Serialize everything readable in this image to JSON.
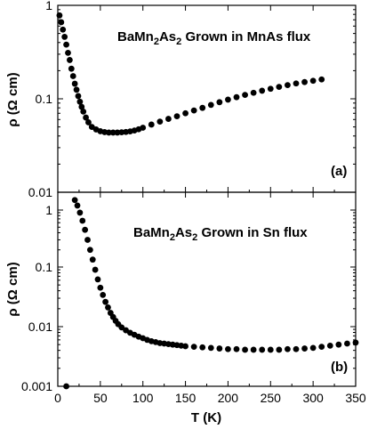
{
  "chart_data": [
    {
      "type": "scatter",
      "scale_y": "log",
      "title": "BaMn2As2 Grown in MnAs flux",
      "title_parts": {
        "base": "BaMn",
        "sub1": "2",
        "mid": "As",
        "sub2": "2",
        "rest": " Grown in MnAs flux"
      },
      "panel_label": "(a)",
      "ylabel": "ρ (Ω cm)",
      "xlabel": "",
      "xlim": [
        0,
        350
      ],
      "ylim": [
        0.01,
        1
      ],
      "yticks": [
        0.01,
        0.1,
        1
      ],
      "ytick_labels": [
        "0.01",
        "0.1",
        "1"
      ],
      "xticks": [
        0,
        50,
        100,
        150,
        200,
        250,
        300,
        350
      ],
      "xtick_labels": [],
      "series": [
        {
          "x": [
            2,
            4,
            6,
            8,
            10,
            12,
            14,
            16,
            18,
            20,
            22,
            24,
            26,
            28,
            30,
            33,
            36,
            40,
            45,
            50,
            55,
            60,
            65,
            70,
            75,
            80,
            85,
            90,
            95,
            100,
            110,
            120,
            130,
            140,
            150,
            160,
            170,
            180,
            190,
            200,
            210,
            220,
            230,
            240,
            250,
            260,
            270,
            280,
            290,
            300,
            310
          ],
          "y": [
            0.78,
            0.66,
            0.55,
            0.46,
            0.38,
            0.31,
            0.26,
            0.21,
            0.175,
            0.145,
            0.125,
            0.107,
            0.093,
            0.082,
            0.073,
            0.063,
            0.056,
            0.05,
            0.047,
            0.045,
            0.044,
            0.0435,
            0.0435,
            0.0435,
            0.0438,
            0.0442,
            0.0448,
            0.0458,
            0.0472,
            0.049,
            0.053,
            0.057,
            0.061,
            0.065,
            0.07,
            0.075,
            0.08,
            0.086,
            0.092,
            0.098,
            0.104,
            0.11,
            0.116,
            0.122,
            0.128,
            0.134,
            0.14,
            0.146,
            0.151,
            0.156,
            0.161
          ]
        }
      ]
    },
    {
      "type": "scatter",
      "scale_y": "log",
      "title": "BaMn2As2 Grown in Sn flux",
      "title_parts": {
        "base": "BaMn",
        "sub1": "2",
        "mid": "As",
        "sub2": "2",
        "rest": " Grown in Sn flux"
      },
      "panel_label": "(b)",
      "ylabel": "ρ (Ω cm)",
      "xlabel": "T (K)",
      "xlim": [
        0,
        350
      ],
      "ylim": [
        0.001,
        2
      ],
      "yticks": [
        0.001,
        0.01,
        0.1,
        1
      ],
      "ytick_labels": [
        "0.001",
        "0.01",
        "0.1",
        "1"
      ],
      "xticks": [
        0,
        50,
        100,
        150,
        200,
        250,
        300,
        350
      ],
      "xtick_labels": [
        "0",
        "50",
        "100",
        "150",
        "200",
        "250",
        "300",
        "350"
      ],
      "series": [
        {
          "x": [
            10,
            20,
            23,
            26,
            29,
            32,
            35,
            38,
            41,
            44,
            47,
            50,
            53,
            56,
            59,
            62,
            65,
            68,
            71,
            75,
            80,
            85,
            90,
            95,
            100,
            105,
            110,
            115,
            120,
            125,
            130,
            135,
            140,
            145,
            150,
            160,
            170,
            180,
            190,
            200,
            210,
            220,
            230,
            240,
            250,
            260,
            270,
            280,
            290,
            300,
            310,
            320,
            330,
            340,
            350
          ],
          "y": [
            0.001,
            1.5,
            1.2,
            0.9,
            0.65,
            0.45,
            0.3,
            0.2,
            0.135,
            0.09,
            0.062,
            0.045,
            0.034,
            0.026,
            0.021,
            0.017,
            0.0145,
            0.0125,
            0.011,
            0.0097,
            0.0087,
            0.0079,
            0.0073,
            0.0068,
            0.0064,
            0.006,
            0.0057,
            0.0055,
            0.0053,
            0.0052,
            0.0051,
            0.005,
            0.0049,
            0.0048,
            0.0047,
            0.0046,
            0.0045,
            0.0044,
            0.0043,
            0.0042,
            0.0042,
            0.0041,
            0.0041,
            0.0041,
            0.0041,
            0.0041,
            0.0042,
            0.0042,
            0.0043,
            0.0044,
            0.0046,
            0.0048,
            0.005,
            0.0052,
            0.0054
          ]
        }
      ]
    }
  ]
}
